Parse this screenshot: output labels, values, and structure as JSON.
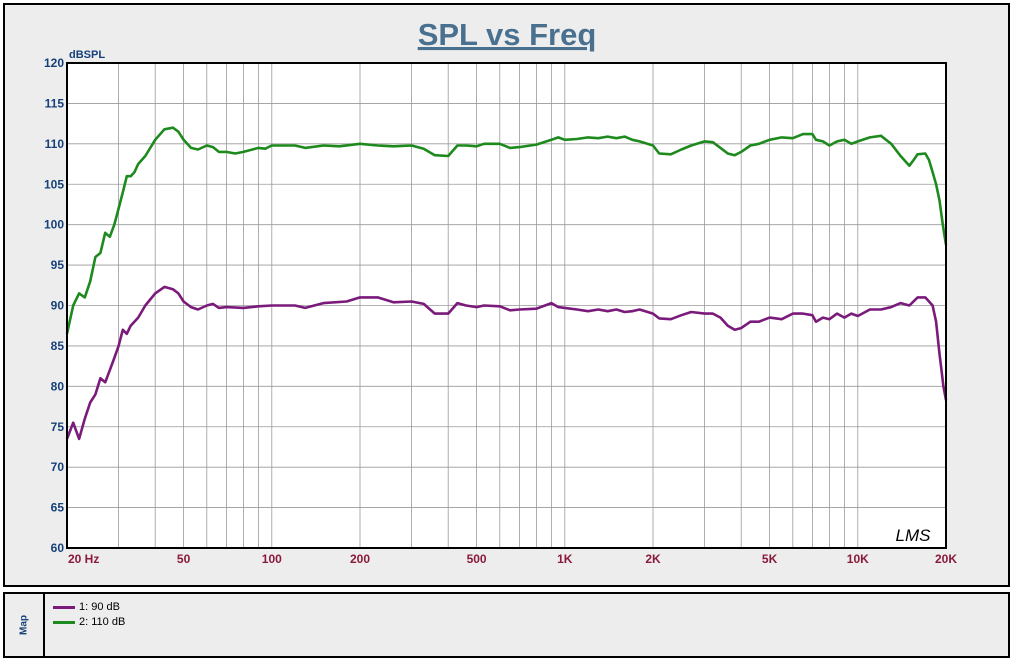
{
  "chart_data": {
    "type": "line",
    "title": "SPL vs Freq",
    "ylabel": "dBSPL",
    "xscale": "log",
    "xlim": [
      20,
      20000
    ],
    "ylim": [
      60,
      120
    ],
    "grid": true,
    "watermark": "LMS",
    "yticks": [
      "60",
      "65",
      "70",
      "75",
      "80",
      "85",
      "90",
      "95",
      "100",
      "105",
      "110",
      "115",
      "120"
    ],
    "xticks": [
      {
        "value": 20,
        "label": "20  Hz"
      },
      {
        "value": 50,
        "label": "50"
      },
      {
        "value": 100,
        "label": "100"
      },
      {
        "value": 200,
        "label": "200"
      },
      {
        "value": 500,
        "label": "500"
      },
      {
        "value": 1000,
        "label": "1K"
      },
      {
        "value": 2000,
        "label": "2K"
      },
      {
        "value": 5000,
        "label": "5K"
      },
      {
        "value": 10000,
        "label": "10K"
      },
      {
        "value": 20000,
        "label": "20K"
      }
    ],
    "series": [
      {
        "name": "1: 90 dB",
        "color": "#7a1a7a",
        "points": [
          [
            20,
            73.5
          ],
          [
            21,
            75.5
          ],
          [
            22,
            73.5
          ],
          [
            23,
            76
          ],
          [
            24,
            78
          ],
          [
            25,
            79
          ],
          [
            26,
            81
          ],
          [
            27,
            80.5
          ],
          [
            28,
            82
          ],
          [
            29,
            83.5
          ],
          [
            30,
            85
          ],
          [
            31,
            87
          ],
          [
            32,
            86.5
          ],
          [
            33,
            87.5
          ],
          [
            35,
            88.5
          ],
          [
            37,
            90
          ],
          [
            40,
            91.5
          ],
          [
            43,
            92.3
          ],
          [
            46,
            92
          ],
          [
            48,
            91.5
          ],
          [
            50,
            90.5
          ],
          [
            53,
            89.8
          ],
          [
            56,
            89.5
          ],
          [
            60,
            90
          ],
          [
            63,
            90.2
          ],
          [
            66,
            89.7
          ],
          [
            70,
            89.8
          ],
          [
            80,
            89.7
          ],
          [
            90,
            89.9
          ],
          [
            100,
            90
          ],
          [
            120,
            90
          ],
          [
            130,
            89.7
          ],
          [
            150,
            90.3
          ],
          [
            180,
            90.5
          ],
          [
            200,
            91
          ],
          [
            230,
            91
          ],
          [
            260,
            90.4
          ],
          [
            300,
            90.5
          ],
          [
            330,
            90.2
          ],
          [
            360,
            89
          ],
          [
            400,
            89
          ],
          [
            430,
            90.3
          ],
          [
            460,
            90
          ],
          [
            500,
            89.8
          ],
          [
            530,
            90
          ],
          [
            600,
            89.9
          ],
          [
            650,
            89.4
          ],
          [
            700,
            89.5
          ],
          [
            800,
            89.6
          ],
          [
            900,
            90.3
          ],
          [
            950,
            89.8
          ],
          [
            1000,
            89.7
          ],
          [
            1100,
            89.5
          ],
          [
            1200,
            89.3
          ],
          [
            1300,
            89.5
          ],
          [
            1400,
            89.3
          ],
          [
            1500,
            89.5
          ],
          [
            1600,
            89.2
          ],
          [
            1700,
            89.3
          ],
          [
            1800,
            89.5
          ],
          [
            2000,
            89
          ],
          [
            2100,
            88.4
          ],
          [
            2300,
            88.3
          ],
          [
            2500,
            88.8
          ],
          [
            2700,
            89.2
          ],
          [
            3000,
            89
          ],
          [
            3200,
            89
          ],
          [
            3400,
            88.5
          ],
          [
            3600,
            87.5
          ],
          [
            3800,
            87
          ],
          [
            4000,
            87.2
          ],
          [
            4300,
            88
          ],
          [
            4600,
            88
          ],
          [
            5000,
            88.5
          ],
          [
            5500,
            88.3
          ],
          [
            6000,
            89
          ],
          [
            6500,
            89
          ],
          [
            7000,
            88.8
          ],
          [
            7200,
            88
          ],
          [
            7600,
            88.5
          ],
          [
            8000,
            88.3
          ],
          [
            8500,
            89
          ],
          [
            9000,
            88.5
          ],
          [
            9500,
            89
          ],
          [
            10000,
            88.7
          ],
          [
            11000,
            89.5
          ],
          [
            12000,
            89.5
          ],
          [
            13000,
            89.8
          ],
          [
            14000,
            90.3
          ],
          [
            15000,
            90
          ],
          [
            16000,
            91
          ],
          [
            17000,
            91
          ],
          [
            18000,
            90
          ],
          [
            18500,
            88
          ],
          [
            19000,
            84
          ],
          [
            19300,
            82
          ],
          [
            19600,
            80
          ],
          [
            20000,
            78.3
          ]
        ]
      },
      {
        "name": "2: 110 dB",
        "color": "#1e8a1e",
        "points": [
          [
            20,
            86.5
          ],
          [
            21,
            90
          ],
          [
            22,
            91.5
          ],
          [
            23,
            91
          ],
          [
            24,
            93
          ],
          [
            25,
            96
          ],
          [
            26,
            96.5
          ],
          [
            27,
            99
          ],
          [
            28,
            98.5
          ],
          [
            29,
            100
          ],
          [
            30,
            102
          ],
          [
            31,
            104
          ],
          [
            32,
            106
          ],
          [
            33,
            106
          ],
          [
            34,
            106.5
          ],
          [
            35,
            107.5
          ],
          [
            37,
            108.5
          ],
          [
            40,
            110.5
          ],
          [
            43,
            111.8
          ],
          [
            46,
            112
          ],
          [
            48,
            111.5
          ],
          [
            50,
            110.5
          ],
          [
            53,
            109.5
          ],
          [
            56,
            109.3
          ],
          [
            60,
            109.8
          ],
          [
            63,
            109.6
          ],
          [
            66,
            109
          ],
          [
            70,
            109
          ],
          [
            75,
            108.8
          ],
          [
            80,
            109
          ],
          [
            90,
            109.5
          ],
          [
            95,
            109.4
          ],
          [
            100,
            109.8
          ],
          [
            120,
            109.8
          ],
          [
            130,
            109.5
          ],
          [
            150,
            109.8
          ],
          [
            170,
            109.7
          ],
          [
            200,
            110
          ],
          [
            230,
            109.8
          ],
          [
            260,
            109.7
          ],
          [
            300,
            109.8
          ],
          [
            330,
            109.4
          ],
          [
            360,
            108.6
          ],
          [
            400,
            108.5
          ],
          [
            430,
            109.8
          ],
          [
            460,
            109.8
          ],
          [
            500,
            109.7
          ],
          [
            530,
            110
          ],
          [
            600,
            110
          ],
          [
            650,
            109.5
          ],
          [
            700,
            109.6
          ],
          [
            800,
            109.9
          ],
          [
            900,
            110.5
          ],
          [
            950,
            110.8
          ],
          [
            1000,
            110.5
          ],
          [
            1100,
            110.6
          ],
          [
            1200,
            110.8
          ],
          [
            1300,
            110.7
          ],
          [
            1400,
            110.9
          ],
          [
            1500,
            110.7
          ],
          [
            1600,
            110.9
          ],
          [
            1700,
            110.5
          ],
          [
            1800,
            110.3
          ],
          [
            2000,
            109.8
          ],
          [
            2100,
            108.8
          ],
          [
            2300,
            108.7
          ],
          [
            2500,
            109.3
          ],
          [
            2700,
            109.8
          ],
          [
            3000,
            110.3
          ],
          [
            3200,
            110.2
          ],
          [
            3400,
            109.5
          ],
          [
            3600,
            108.8
          ],
          [
            3800,
            108.6
          ],
          [
            4000,
            109
          ],
          [
            4300,
            109.8
          ],
          [
            4600,
            110
          ],
          [
            5000,
            110.5
          ],
          [
            5500,
            110.8
          ],
          [
            6000,
            110.7
          ],
          [
            6500,
            111.2
          ],
          [
            7000,
            111.2
          ],
          [
            7200,
            110.5
          ],
          [
            7600,
            110.3
          ],
          [
            8000,
            109.8
          ],
          [
            8500,
            110.3
          ],
          [
            9000,
            110.5
          ],
          [
            9500,
            110
          ],
          [
            10000,
            110.3
          ],
          [
            11000,
            110.8
          ],
          [
            12000,
            111
          ],
          [
            13000,
            110
          ],
          [
            14000,
            108.5
          ],
          [
            15000,
            107.3
          ],
          [
            15500,
            108
          ],
          [
            16000,
            108.7
          ],
          [
            17000,
            108.8
          ],
          [
            17500,
            108
          ],
          [
            18000,
            106.5
          ],
          [
            18500,
            105
          ],
          [
            19000,
            103
          ],
          [
            19500,
            100
          ],
          [
            20000,
            97.5
          ]
        ]
      }
    ]
  },
  "legend": {
    "tab_label": "Map",
    "items": [
      {
        "label": "1: 90 dB",
        "color": "#7a1a7a"
      },
      {
        "label": "2: 110 dB",
        "color": "#1e8a1e"
      }
    ]
  }
}
